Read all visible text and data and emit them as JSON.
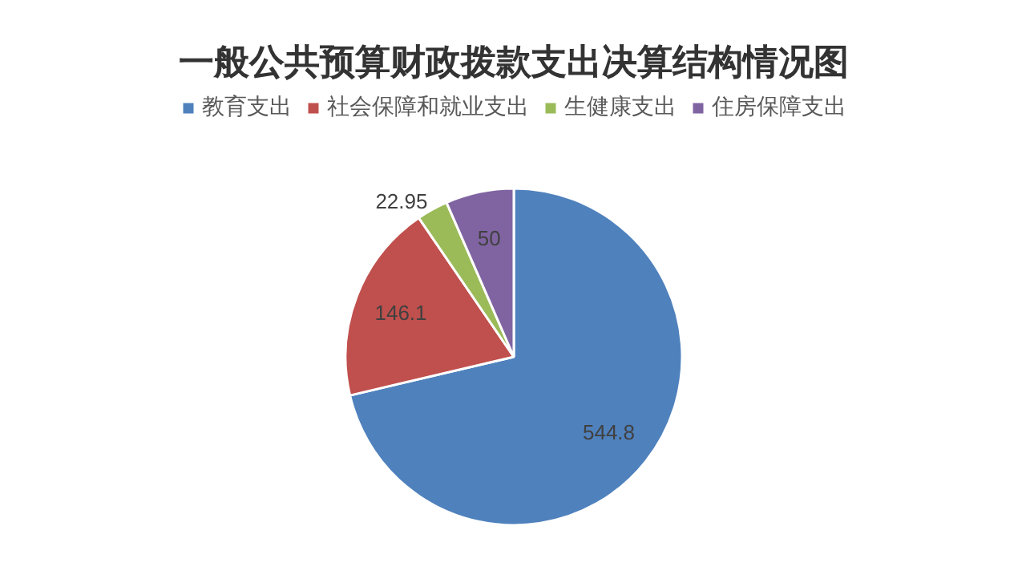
{
  "chart_data": {
    "type": "pie",
    "title": "一般公共预算财政拨款支出决算结构情况图",
    "categories": [
      "教育支出",
      "社会保障和就业支出",
      "生健康支出",
      "住房保障支出"
    ],
    "values": [
      544.8,
      146.1,
      22.95,
      50
    ],
    "colors": [
      "#4f81bd",
      "#c0504d",
      "#9bbb59",
      "#8064a2"
    ],
    "data_labels": true,
    "legend": "top"
  }
}
